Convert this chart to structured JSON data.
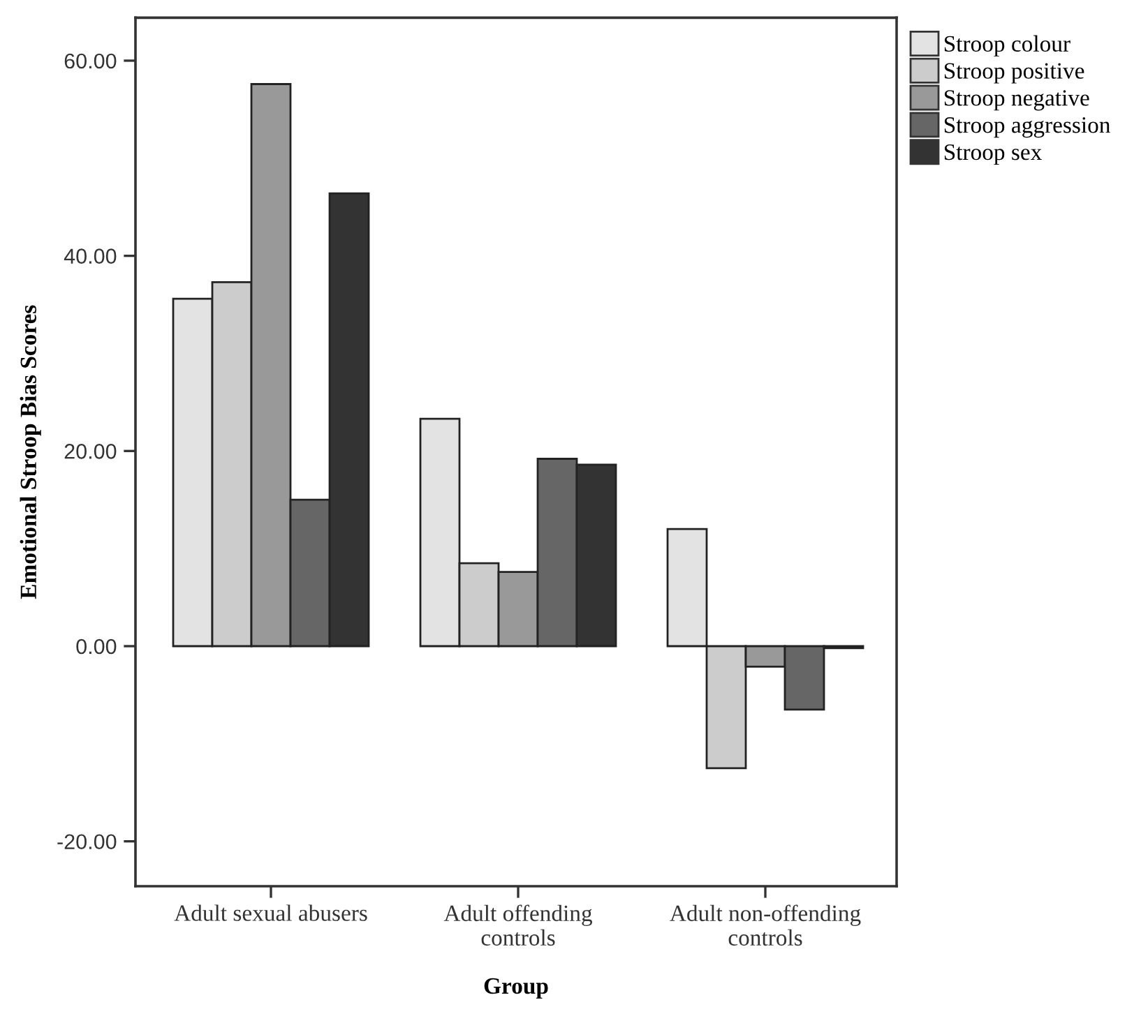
{
  "chart_data": {
    "type": "bar",
    "xlabel": "Group",
    "ylabel": "Emotional Stroop Bias Scores",
    "categories": [
      "Adult sexual abusers",
      "Adult offending\ncontrols",
      "Adult non-offending\ncontrols"
    ],
    "series": [
      {
        "name": "Stroop colour",
        "color": "#e3e3e3",
        "values": [
          35.6,
          23.3,
          12.0
        ]
      },
      {
        "name": "Stroop positive",
        "color": "#cccccc",
        "values": [
          37.3,
          8.5,
          -12.5
        ]
      },
      {
        "name": "Stroop negative",
        "color": "#999999",
        "values": [
          57.6,
          7.6,
          -2.1
        ]
      },
      {
        "name": "Stroop aggression",
        "color": "#666666",
        "values": [
          15.0,
          19.2,
          -6.5
        ]
      },
      {
        "name": "Stroop sex",
        "color": "#333333",
        "values": [
          46.4,
          18.6,
          -0.2
        ]
      }
    ],
    "ylim": [
      -24.6,
      64.4
    ],
    "yticks": [
      {
        "value": -20,
        "label": "-20.00"
      },
      {
        "value": 0,
        "label": "0.00"
      },
      {
        "value": 20,
        "label": "20.00"
      },
      {
        "value": 40,
        "label": "40.00"
      },
      {
        "value": 60,
        "label": "60.00"
      }
    ],
    "grid": false,
    "legend": "top right"
  }
}
